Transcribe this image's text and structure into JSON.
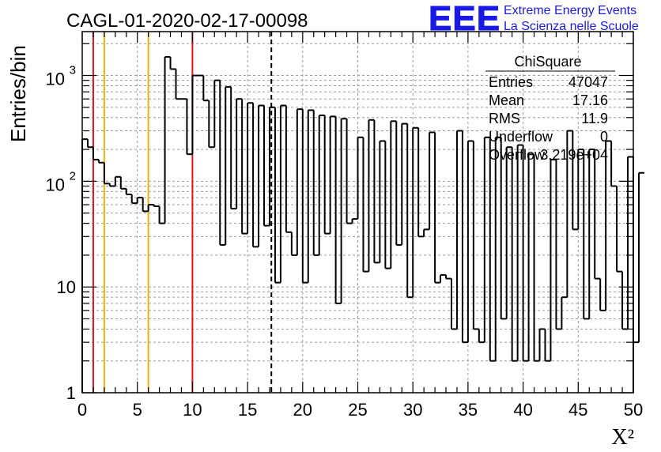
{
  "chart_data": {
    "type": "bar",
    "title": "CAGL-01-2020-02-17-00098",
    "xlabel": "X²",
    "ylabel": "Entries/bin",
    "xlim": [
      0,
      50
    ],
    "ylim": [
      1,
      2600
    ],
    "y_scale": "log",
    "grid": true,
    "bin_width": 0.5,
    "x_ticks": [
      0,
      5,
      10,
      15,
      20,
      25,
      30,
      35,
      40,
      45,
      50
    ],
    "y_ticks": [
      {
        "value": 1,
        "label": "1"
      },
      {
        "value": 10,
        "label": "10"
      },
      {
        "value": 100,
        "label": "10",
        "exp": "2"
      },
      {
        "value": 1000,
        "label": "10",
        "exp": "3"
      }
    ],
    "values": [
      250,
      210,
      160,
      150,
      95,
      90,
      110,
      85,
      75,
      62,
      70,
      52,
      60,
      58,
      40,
      1500,
      1150,
      600,
      600,
      180,
      1000,
      1000,
      580,
      210,
      900,
      25,
      780,
      55,
      600,
      32,
      550,
      24,
      520,
      38,
      500,
      11,
      520,
      33,
      20,
      480,
      11,
      470,
      20,
      420,
      32,
      410,
      7,
      390,
      40,
      44,
      260,
      14,
      380,
      17,
      240,
      15,
      370,
      25,
      350,
      8,
      320,
      30,
      35,
      290,
      11,
      13,
      12,
      4,
      300,
      3,
      240,
      4,
      3,
      260,
      2,
      260,
      5,
      210,
      2,
      220,
      2,
      180,
      2,
      4,
      2,
      160,
      4,
      8,
      300,
      35,
      200,
      5,
      200,
      12,
      6,
      240,
      90,
      14,
      4,
      170,
      3,
      120
    ]
  },
  "reference_lines": [
    {
      "x": 1,
      "color": "#e0141e"
    },
    {
      "x": 2,
      "color": "#f0b400"
    },
    {
      "x": 6,
      "color": "#f0b400"
    },
    {
      "x": 10,
      "color": "#e0141e"
    },
    {
      "x": 17.16,
      "color": "#000000",
      "dashed": true
    }
  ],
  "stats": {
    "title": "ChiSquare",
    "rows": [
      {
        "label": "Entries",
        "value": "47047"
      },
      {
        "label": "Mean",
        "value": "17.16"
      },
      {
        "label": "RMS",
        "value": "11.9"
      },
      {
        "label": "Underflow",
        "value": "0"
      },
      {
        "label": "Overflow",
        "value": "3.219e+04"
      }
    ]
  },
  "logo": {
    "mark": "EEE",
    "line1": "Extreme Energy Events",
    "line2": "La Scienza nelle Scuole",
    "color": "#1a1ae6"
  }
}
